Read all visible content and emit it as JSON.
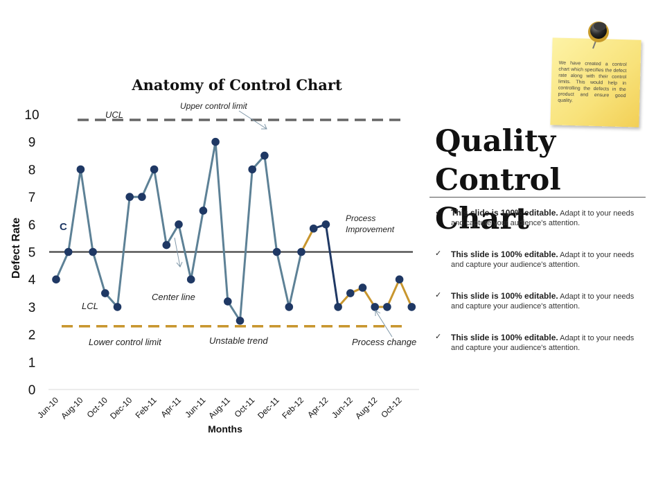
{
  "page": {
    "title_line1": "Quality",
    "title_line2": "Control Chart",
    "bullets": [
      {
        "bold": "This slide is 100% editable.",
        "text": " Adapt it to your needs and capture your audience's attention."
      },
      {
        "bold": "This slide is 100% editable.",
        "text": " Adapt it to your needs and capture your audience's attention."
      },
      {
        "bold": "This slide is 100% editable.",
        "text": " Adapt it to your needs and capture your audience's attention."
      },
      {
        "bold": "This slide is 100% editable.",
        "text": " Adapt it to your needs and capture your audience's attention."
      }
    ],
    "check_glyph": "✓",
    "note_text": "We have created a control chart which specifies the defect rate along with their control limits. This would help in controlling the defects in the product and ensure good quality."
  },
  "chart_data": {
    "type": "line",
    "title": "Anatomy of Control Chart",
    "xlabel": "Months",
    "ylabel": "Defect Rate",
    "ylim": [
      0,
      10
    ],
    "yticks": [
      0,
      1,
      2,
      3,
      4,
      5,
      6,
      7,
      8,
      9,
      10
    ],
    "x_tick_labels": [
      "Jun-10",
      "Aug-10",
      "Oct-10",
      "Dec-10",
      "Feb-11",
      "Apr-11",
      "Jun-11",
      "Aug-11",
      "Oct-11",
      "Dec-11",
      "Feb-12",
      "Apr-12",
      "Jun-12",
      "Aug-12",
      "Oct-12"
    ],
    "series": [
      {
        "name": "Defect Rate",
        "values": [
          4,
          5,
          8,
          5,
          3.5,
          3,
          7,
          7,
          8,
          5.25,
          6,
          4,
          6.5,
          9,
          3.2,
          2.5,
          8,
          8.5,
          5,
          3,
          5,
          5.85,
          6,
          3,
          3.5,
          3.7,
          3,
          3,
          4,
          3
        ]
      }
    ],
    "segment_colors": {
      "main": "#5d8196",
      "improvement": "#1f3864",
      "change": "#c8962e"
    },
    "marker_color": "#1f3864",
    "lines": {
      "ucl": {
        "value": 9.8,
        "label": "UCL",
        "color": "#666666"
      },
      "center": {
        "value": 5,
        "label": "C",
        "color": "#555555"
      },
      "lcl": {
        "value": 2.3,
        "label": "LCL",
        "color": "#c8962e"
      }
    },
    "annotations": {
      "upper_control_limit": "Upper control limit",
      "center_line": "Center line",
      "lower_control_limit": "Lower control limit",
      "unstable_trend": "Unstable trend",
      "process_improvement_1": "Process",
      "process_improvement_2": "Improvement",
      "process_change": "Process change"
    }
  }
}
